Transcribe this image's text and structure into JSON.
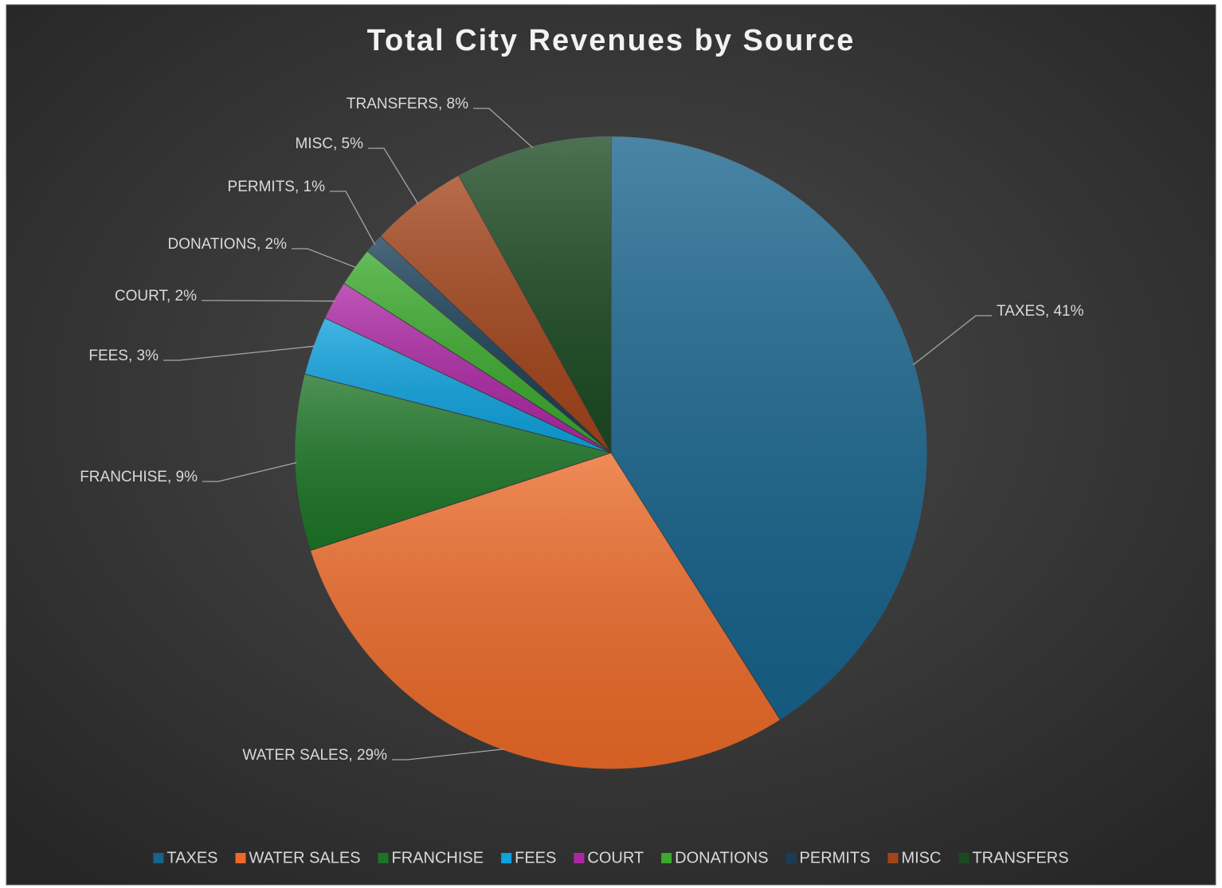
{
  "chart_data": {
    "type": "pie",
    "title": "Total City Revenues by Source",
    "categories": [
      "TAXES",
      "WATER SALES",
      "FRANCHISE",
      "FEES",
      "COURT",
      "DONATIONS",
      "PERMITS",
      "MISC",
      "TRANSFERS"
    ],
    "values": [
      41,
      29,
      9,
      3,
      2,
      2,
      1,
      5,
      8
    ],
    "value_labels": [
      "TAXES, 41%",
      "WATER SALES, 29%",
      "FRANCHISE, 9%",
      "FEES, 3%",
      "COURT, 2%",
      "DONATIONS, 2%",
      "PERMITS, 1%",
      "MISC, 5%",
      "TRANSFERS, 8%"
    ],
    "colors": [
      "#17638c",
      "#ec6a28",
      "#1c7526",
      "#0ea2de",
      "#ad27a5",
      "#3aa92c",
      "#183e56",
      "#a3441a",
      "#1b4a22"
    ],
    "legend": "bottom"
  }
}
